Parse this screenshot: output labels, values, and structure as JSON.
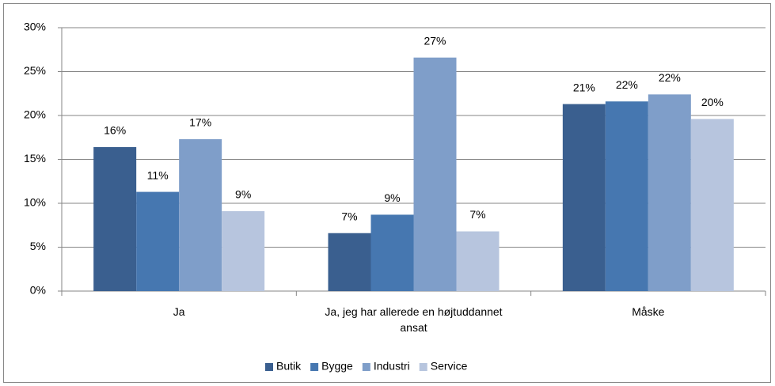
{
  "chart_data": {
    "type": "bar",
    "categories": [
      "Ja",
      "Ja, jeg har allerede en højtuddannet ansat",
      "Måske"
    ],
    "series": [
      {
        "name": "Butik",
        "color": "#3a5f8f",
        "values": [
          16.4,
          6.6,
          21.3
        ],
        "value_labels": [
          "16%",
          "7%",
          "21%"
        ]
      },
      {
        "name": "Bygge",
        "color": "#4677b0",
        "values": [
          11.3,
          8.7,
          21.6
        ],
        "value_labels": [
          "11%",
          "9%",
          "22%"
        ]
      },
      {
        "name": "Industri",
        "color": "#7f9ec9",
        "values": [
          17.3,
          26.6,
          22.4
        ],
        "value_labels": [
          "17%",
          "27%",
          "22%"
        ]
      },
      {
        "name": "Service",
        "color": "#b7c5de",
        "values": [
          9.1,
          6.8,
          19.6
        ],
        "value_labels": [
          "9%",
          "7%",
          "20%"
        ]
      }
    ],
    "ylim": [
      0,
      30
    ],
    "yticks": [
      {
        "value": 0,
        "label": "0%"
      },
      {
        "value": 5,
        "label": "5%"
      },
      {
        "value": 10,
        "label": "10%"
      },
      {
        "value": 15,
        "label": "15%"
      },
      {
        "value": 20,
        "label": "20%"
      },
      {
        "value": 25,
        "label": "25%"
      },
      {
        "value": 30,
        "label": "30%"
      }
    ],
    "grid": true,
    "legend": "bottom"
  }
}
